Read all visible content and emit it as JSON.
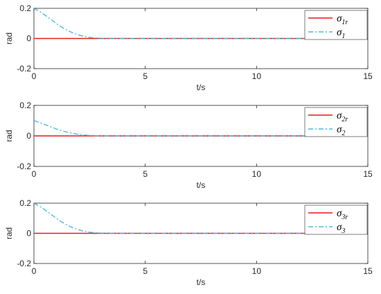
{
  "colors": {
    "reference_line": "#e41a1c",
    "actual_line": "#4ab8e0",
    "axis": "#262626",
    "background": "#ffffff"
  },
  "chart_data": [
    {
      "type": "line",
      "xlabel": "t/s",
      "ylabel": "rad",
      "xlim": [
        0,
        15
      ],
      "ylim": [
        -0.2,
        0.2
      ],
      "xticks": [
        "0",
        "5",
        "10",
        "15"
      ],
      "yticks": [
        "-0.2",
        "0",
        "0.2"
      ],
      "legend_position": "top-right",
      "grid": false,
      "series": [
        {
          "name": "σ1r",
          "legend_base": "σ",
          "legend_sub": "1r",
          "style": "solid",
          "color": "#e41a1c",
          "x": [
            0,
            15
          ],
          "y": [
            0,
            0
          ]
        },
        {
          "name": "σ1",
          "legend_base": "σ",
          "legend_sub": "1",
          "style": "dashdot",
          "color": "#4ab8e0",
          "x": [
            0,
            0.25,
            0.5,
            0.75,
            1.0,
            1.25,
            1.5,
            1.75,
            2.0,
            2.25,
            2.5,
            2.75,
            3.0,
            3.25,
            3.5,
            4.0,
            15
          ],
          "y": [
            0.2,
            0.18,
            0.155,
            0.128,
            0.1,
            0.075,
            0.054,
            0.037,
            0.024,
            0.014,
            0.008,
            0.004,
            0.002,
            0.001,
            0.0005,
            0,
            0
          ]
        }
      ]
    },
    {
      "type": "line",
      "xlabel": "t/s",
      "ylabel": "rad",
      "xlim": [
        0,
        15
      ],
      "ylim": [
        -0.2,
        0.2
      ],
      "xticks": [
        "0",
        "5",
        "10",
        "15"
      ],
      "yticks": [
        "-0.2",
        "0",
        "0.2"
      ],
      "legend_position": "top-right",
      "grid": false,
      "series": [
        {
          "name": "σ2r",
          "legend_base": "σ",
          "legend_sub": "2r",
          "style": "solid",
          "color": "#e41a1c",
          "x": [
            0,
            15
          ],
          "y": [
            0,
            0
          ]
        },
        {
          "name": "σ2",
          "legend_base": "σ",
          "legend_sub": "2",
          "style": "dashdot",
          "color": "#4ab8e0",
          "x": [
            0,
            0.25,
            0.5,
            0.75,
            1.0,
            1.25,
            1.5,
            1.75,
            2.0,
            2.25,
            2.5,
            2.75,
            3.0,
            3.5,
            15
          ],
          "y": [
            0.1,
            0.088,
            0.074,
            0.06,
            0.046,
            0.034,
            0.024,
            0.016,
            0.01,
            0.006,
            0.003,
            0.0015,
            0.0007,
            0,
            0
          ]
        }
      ]
    },
    {
      "type": "line",
      "xlabel": "t/s",
      "ylabel": "rad",
      "xlim": [
        0,
        15
      ],
      "ylim": [
        -0.2,
        0.2
      ],
      "xticks": [
        "0",
        "5",
        "10",
        "15"
      ],
      "yticks": [
        "-0.2",
        "0",
        "0.2"
      ],
      "legend_position": "top-right",
      "grid": false,
      "series": [
        {
          "name": "σ3r",
          "legend_base": "σ",
          "legend_sub": "3r",
          "style": "solid",
          "color": "#e41a1c",
          "x": [
            0,
            15
          ],
          "y": [
            0,
            0
          ]
        },
        {
          "name": "σ3",
          "legend_base": "σ",
          "legend_sub": "3",
          "style": "dashdot",
          "color": "#4ab8e0",
          "x": [
            0,
            0.25,
            0.5,
            0.75,
            1.0,
            1.25,
            1.5,
            1.75,
            2.0,
            2.25,
            2.5,
            2.75,
            3.0,
            3.25,
            3.5,
            4.0,
            15
          ],
          "y": [
            0.2,
            0.18,
            0.155,
            0.128,
            0.1,
            0.075,
            0.054,
            0.037,
            0.024,
            0.014,
            0.008,
            0.004,
            0.002,
            0.001,
            0.0005,
            0,
            0
          ]
        }
      ]
    }
  ]
}
